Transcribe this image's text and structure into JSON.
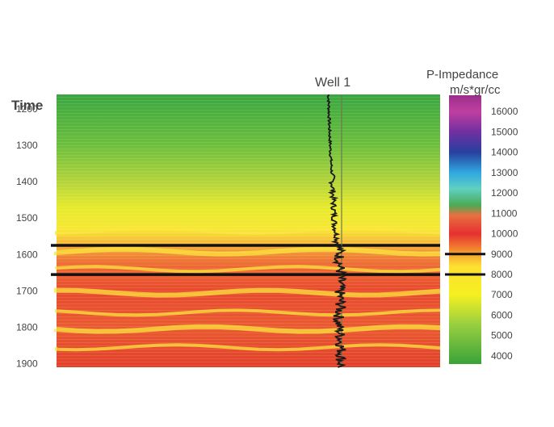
{
  "chart_data": {
    "type": "heatmap",
    "title": "",
    "well": {
      "label": "Well 1"
    },
    "y_axis": {
      "label": "Time",
      "ticks": [
        1200,
        1300,
        1400,
        1500,
        1600,
        1700,
        1800,
        1900
      ],
      "range": [
        1160,
        1910
      ]
    },
    "colorbar": {
      "title_line1": "P-Impedance",
      "title_line2": "m/s*gr/cc",
      "ticks": [
        4000,
        5000,
        6000,
        7000,
        8000,
        9000,
        10000,
        11000,
        12000,
        13000,
        14000,
        15000,
        16000
      ],
      "range": [
        3600,
        16800
      ],
      "markers": [
        9000,
        8000
      ],
      "stops": [
        {
          "value": 3600,
          "color": "#3aa33a"
        },
        {
          "value": 5600,
          "color": "#9bd040"
        },
        {
          "value": 7000,
          "color": "#f5f020"
        },
        {
          "value": 8400,
          "color": "#fde030"
        },
        {
          "value": 9000,
          "color": "#f7a030"
        },
        {
          "value": 10000,
          "color": "#e53030"
        },
        {
          "value": 10900,
          "color": "#e87040"
        },
        {
          "value": 11400,
          "color": "#4aaa55"
        },
        {
          "value": 12200,
          "color": "#5fd0c0"
        },
        {
          "value": 13000,
          "color": "#30a8e0"
        },
        {
          "value": 14000,
          "color": "#2840a0"
        },
        {
          "value": 15000,
          "color": "#7030a0"
        },
        {
          "value": 16000,
          "color": "#c03fa0"
        },
        {
          "value": 16800,
          "color": "#9a2f8a"
        }
      ]
    },
    "horizons": [
      {
        "time": 1575,
        "color": "#111111"
      },
      {
        "time": 1655,
        "color": "#111111"
      }
    ],
    "impedance_profile": [
      {
        "time": 1160,
        "value": 4600
      },
      {
        "time": 1250,
        "value": 5000
      },
      {
        "time": 1320,
        "value": 5500
      },
      {
        "time": 1400,
        "value": 6300
      },
      {
        "time": 1460,
        "value": 6800
      },
      {
        "time": 1520,
        "value": 7300
      },
      {
        "time": 1560,
        "value": 8500
      },
      {
        "time": 1580,
        "value": 9200
      },
      {
        "time": 1620,
        "value": 9500
      },
      {
        "time": 1660,
        "value": 9800
      },
      {
        "time": 1700,
        "value": 9400
      },
      {
        "time": 1740,
        "value": 9900
      },
      {
        "time": 1780,
        "value": 8800
      },
      {
        "time": 1820,
        "value": 9700
      },
      {
        "time": 1860,
        "value": 10200
      },
      {
        "time": 1910,
        "value": 10000
      }
    ],
    "yellow_bands": [
      1535,
      1592,
      1640,
      1705,
      1760,
      1805,
      1855
    ],
    "xlabel": "",
    "grid": false
  }
}
